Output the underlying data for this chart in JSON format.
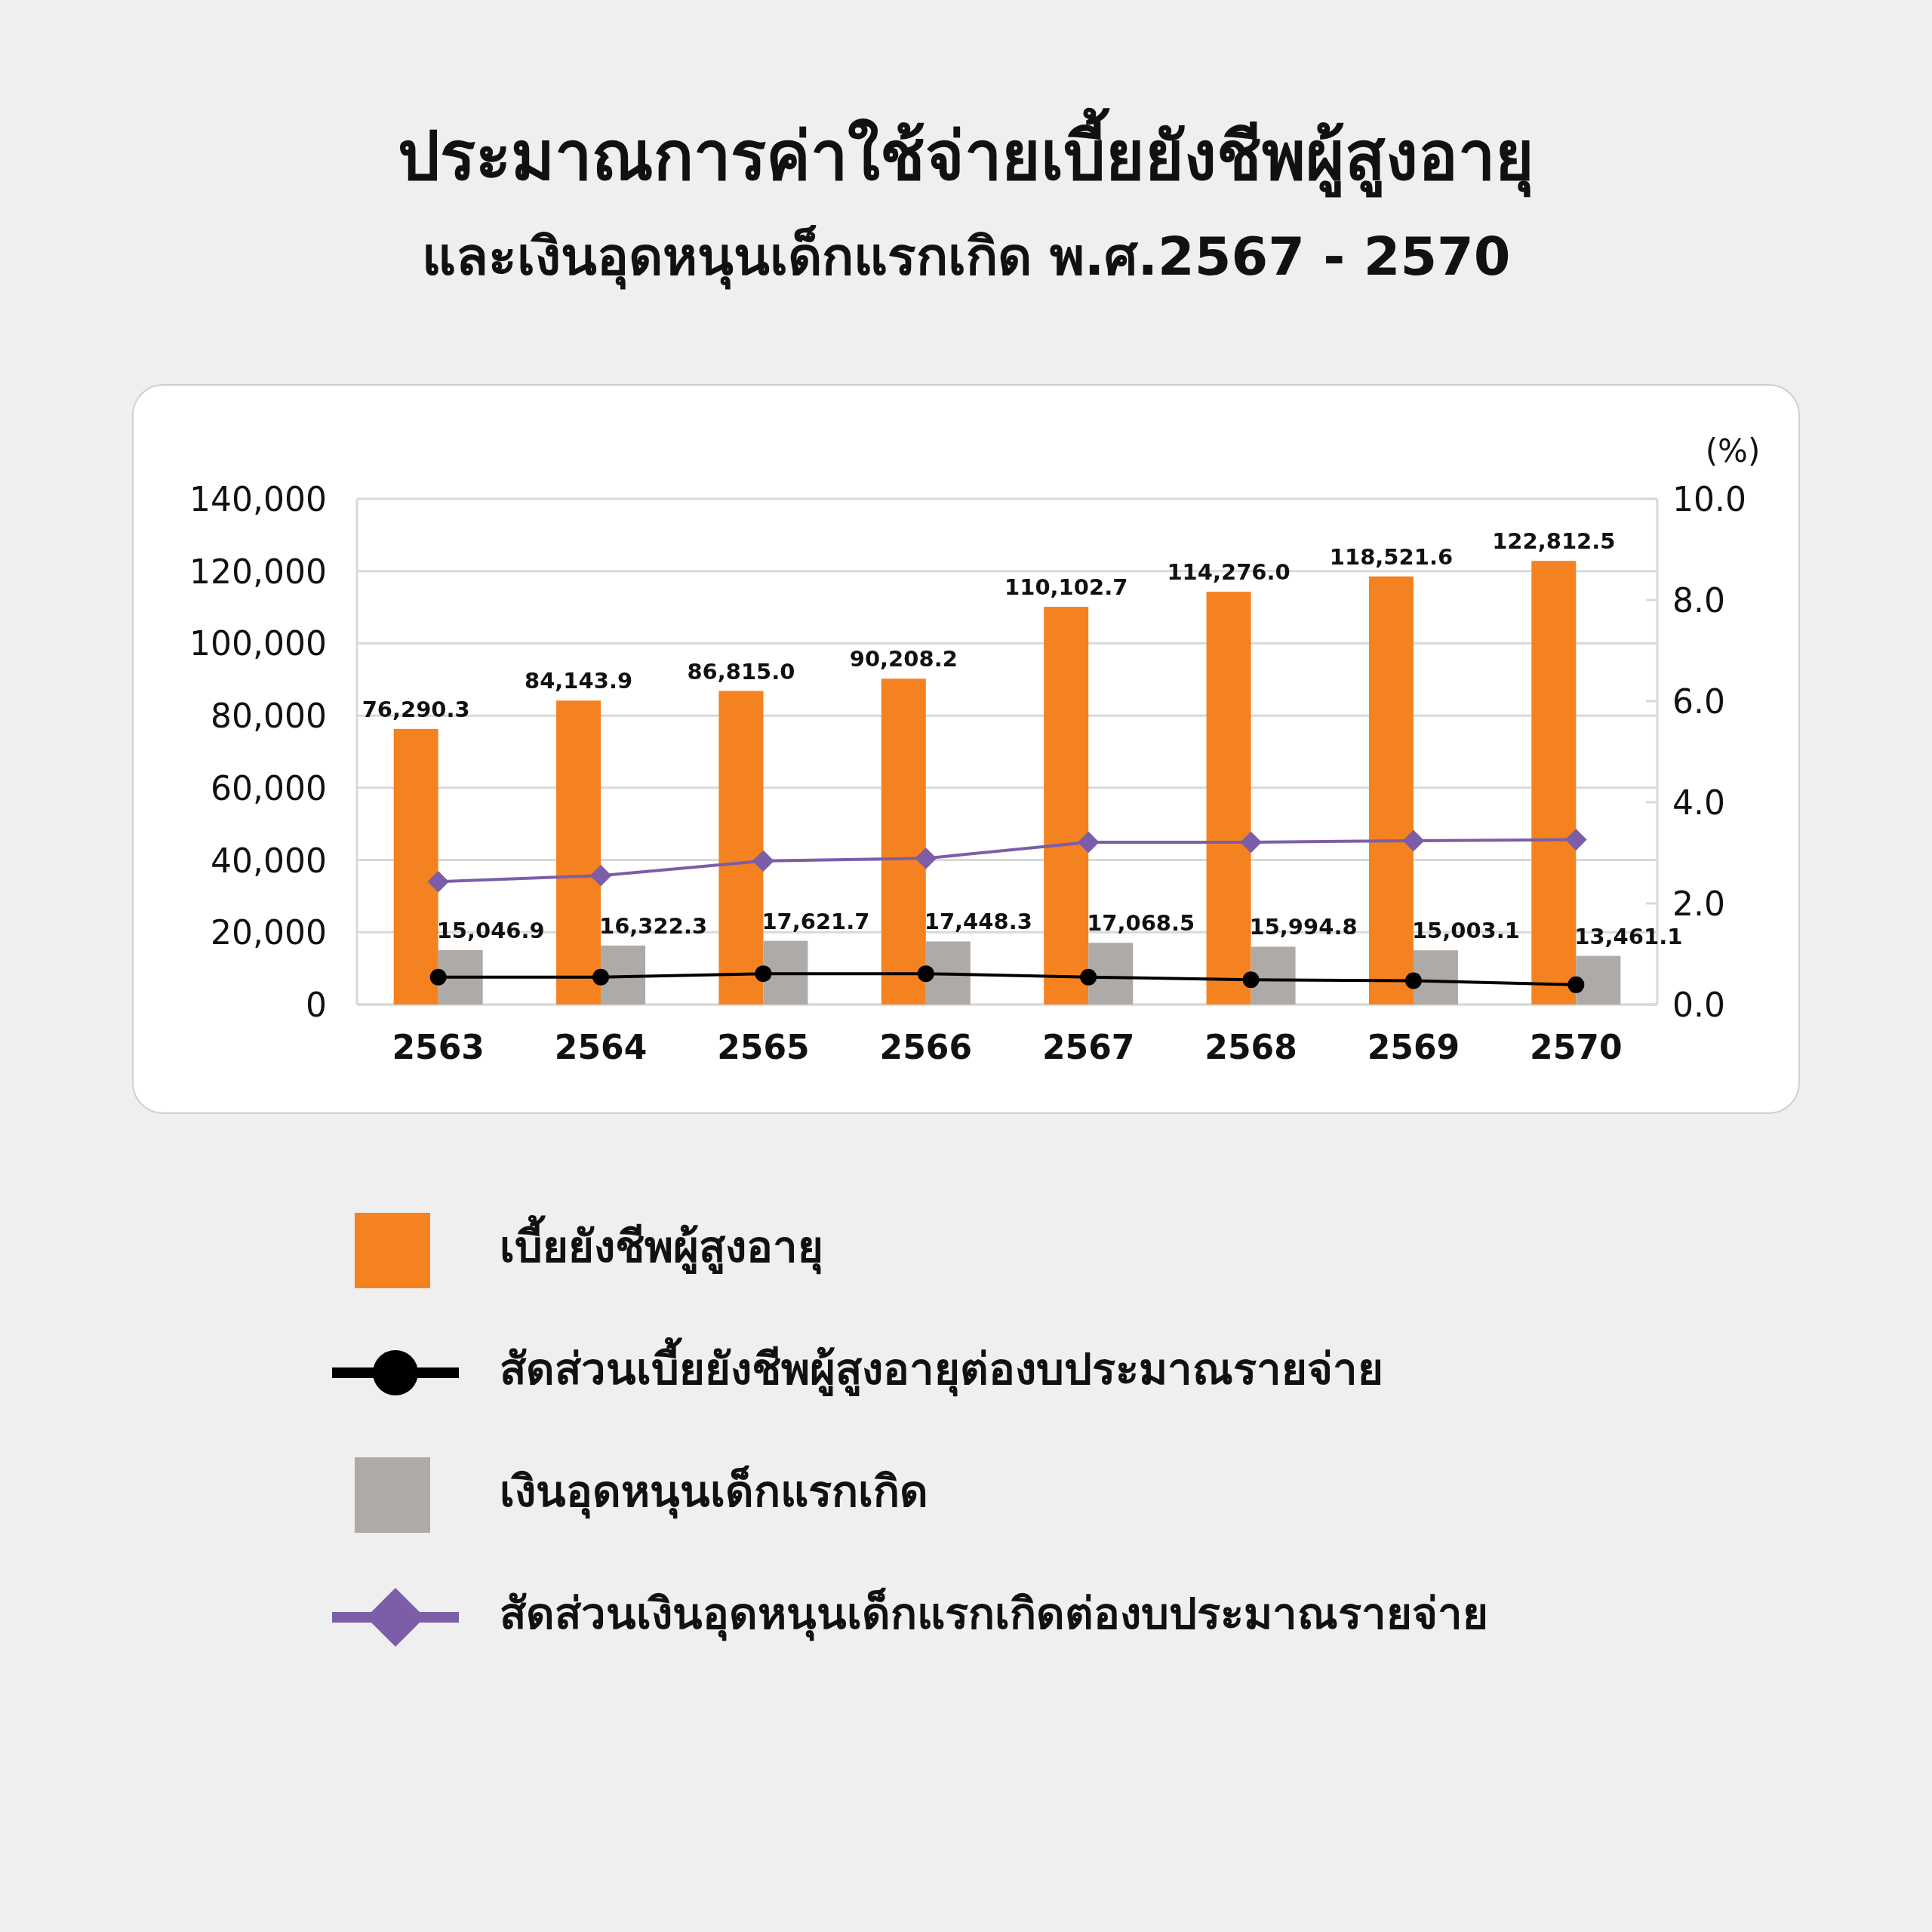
{
  "chart_data": {
    "type": "bar",
    "title": "ประมาณการค่าใช้จ่ายเบี้ยยังชีพผู้สูงอายุ",
    "subtitle": "และเงินอุดหนุนเด็กแรกเกิด พ.ศ.2567 - 2570",
    "y2label": "(%)",
    "categories": [
      "2563",
      "2564",
      "2565",
      "2566",
      "2567",
      "2568",
      "2569",
      "2570"
    ],
    "series": [
      {
        "name": "เบี้ยยังชีพผู้สูงอายุ",
        "color": "#f58220",
        "values": [
          76290.3,
          84143.9,
          86815.0,
          90208.2,
          110102.7,
          114276.0,
          118521.6,
          122812.5
        ],
        "value_labels": [
          "76,290.3",
          "84,143.9",
          "86,815.0",
          "90,208.2",
          "110,102.7",
          "114,276.0",
          "118,521.6",
          "122,812.5"
        ]
      },
      {
        "name": "สัดส่วนเบี้ยยังชีพผู้สูงอายุต่องบประมาณรายจ่าย",
        "type": "line",
        "axis": "y2",
        "color": "#000000",
        "marker": "circle",
        "values": [
          0.54,
          0.54,
          0.61,
          0.61,
          0.54,
          0.49,
          0.47,
          0.39
        ]
      },
      {
        "name": "เงินอุดหนุนเด็กแรกเกิด",
        "color": "#aeaaa7",
        "values": [
          15046.9,
          16322.3,
          17621.7,
          17448.3,
          17068.5,
          15994.8,
          15003.1,
          13461.1
        ],
        "value_labels": [
          "15,046.9",
          "16,322.3",
          "17,621.7",
          "17,448.3",
          "17,068.5",
          "15,994.8",
          "15,003.1",
          "13,461.1"
        ]
      },
      {
        "name": "สัดส่วนเงินอุดหนุนเด็กแรกเกิดต่องบประมาณรายจ่าย",
        "type": "line",
        "axis": "y2",
        "color": "#7b5ea7",
        "marker": "diamond",
        "values": [
          2.43,
          2.55,
          2.84,
          2.89,
          3.21,
          3.21,
          3.24,
          3.26
        ]
      }
    ],
    "ylim": [
      0,
      140000
    ],
    "yticks": [
      0,
      {
        "value": 20000,
        "label": "20,000"
      },
      {
        "value": 40000,
        "label": "40,000"
      },
      {
        "value": 60000,
        "label": "60,000"
      },
      {
        "value": 80000,
        "label": "80,000"
      },
      {
        "value": 100000,
        "label": "100,000"
      },
      {
        "value": 120000,
        "label": "120,000"
      },
      {
        "value": 140000,
        "label": "140,000"
      }
    ],
    "y2lim": [
      0,
      10
    ],
    "y2ticks": [
      {
        "value": 0,
        "label": "0.0"
      },
      {
        "value": 2,
        "label": "2.0"
      },
      {
        "value": 4,
        "label": "4.0"
      },
      {
        "value": 6,
        "label": "6.0"
      },
      {
        "value": 8,
        "label": "8.0"
      },
      {
        "value": 10,
        "label": "10.0"
      }
    ],
    "grid": "y",
    "legend": "bottom"
  }
}
